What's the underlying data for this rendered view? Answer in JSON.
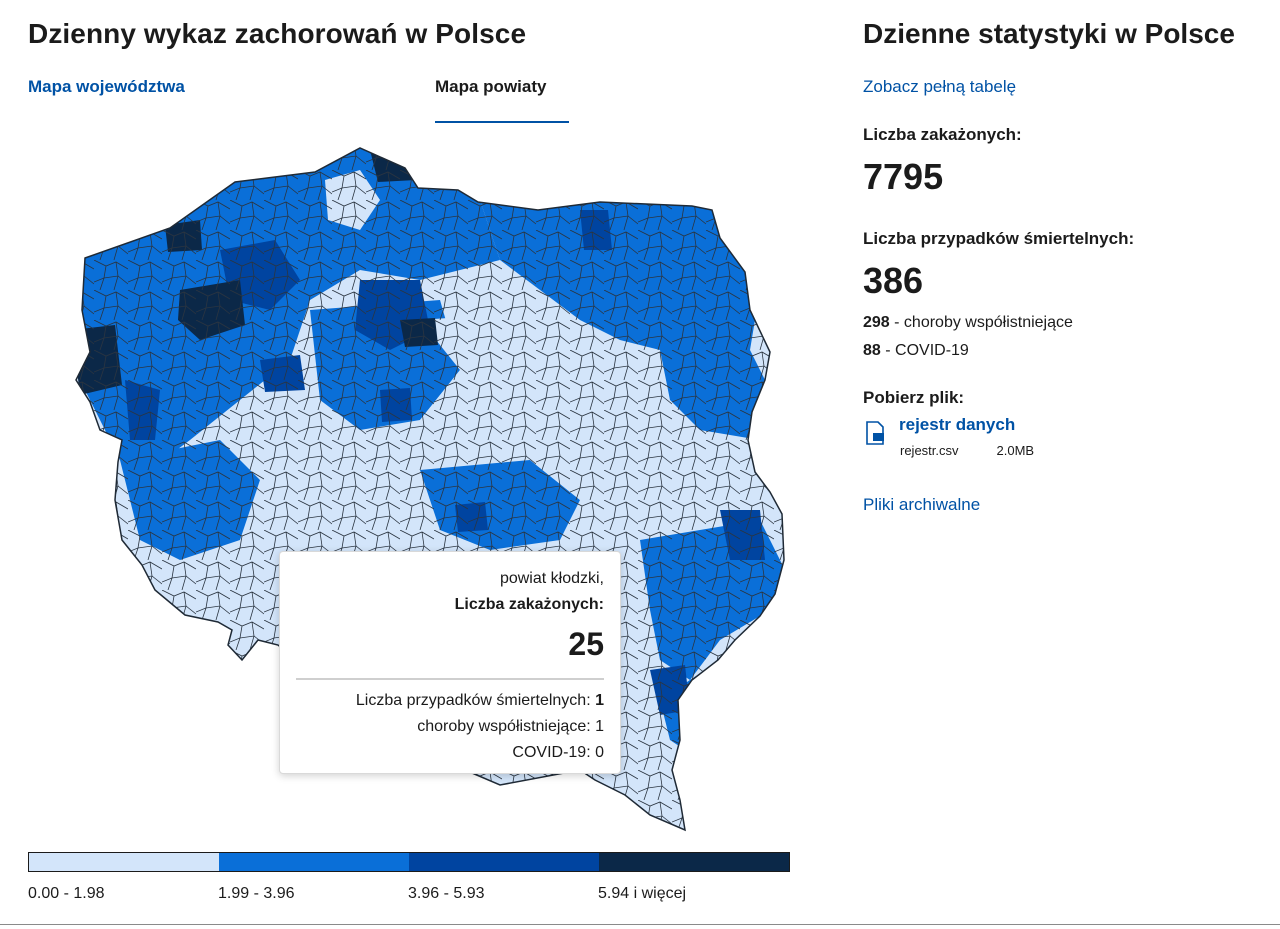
{
  "left": {
    "title": "Dzienny wykaz zachorowań w Polsce",
    "tabs": [
      {
        "label": "Mapa województwa",
        "active": false
      },
      {
        "label": "Mapa powiaty",
        "active": true
      }
    ]
  },
  "tooltip": {
    "region": "powiat kłodzki,",
    "infected_label": "Liczba zakażonych:",
    "infected_value": "25",
    "deaths_label": "Liczba przypadków śmiertelnych: ",
    "deaths_value": "1",
    "comorbid_line": "choroby współistniejące: 1",
    "covid_line": "COVID-19: 0"
  },
  "legend": {
    "items": [
      {
        "label": "0.00 - 1.98",
        "color": "#d3e5fa"
      },
      {
        "label": "1.99 - 3.96",
        "color": "#0a6fd8"
      },
      {
        "label": "3.96 - 5.93",
        "color": "#0044a0"
      },
      {
        "label": "5.94 i więcej",
        "color": "#0b2848"
      }
    ]
  },
  "right": {
    "title": "Dzienne statystyki w Polsce",
    "full_table_link": "Zobacz pełną tabelę",
    "infected_label": "Liczba zakażonych:",
    "infected_value": "7795",
    "deaths_label": "Liczba przypadków śmiertelnych:",
    "deaths_value": "386",
    "comorbid_count": "298",
    "comorbid_text": " - choroby współistniejące",
    "covid_count": "88",
    "covid_text": " - COVID-19",
    "download_label": "Pobierz plik:",
    "file_link": "rejestr danych",
    "file_name": "rejestr.csv",
    "file_size": "2.0MB",
    "archive_link": "Pliki archiwalne"
  },
  "colors": {
    "accent": "#0052a5",
    "outline": "#1f2a36"
  },
  "icons": [
    "file-icon"
  ]
}
